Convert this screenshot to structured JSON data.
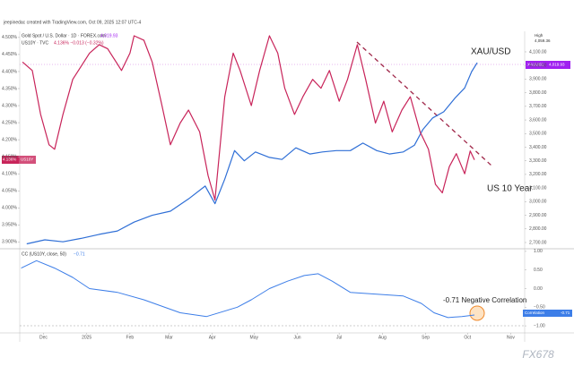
{
  "header": "jeepinedac created with TradingView.com, Oct 09, 2025 12:07 UTC-4",
  "chart_data": [
    {
      "type": "line",
      "legend_values": [
        "4,019.93",
        "4.136% −0.013 (−0.32%)"
      ],
      "annotations": {
        "gold": "XAU/USD",
        "yield": "US 10 Year"
      },
      "last_labels": {
        "yield_name": "US10Y",
        "yield_value": "4.136%",
        "gold_name": "XAUUSD",
        "gold_value": "4,019.93",
        "high_name": "High",
        "high_value": "4,059.36"
      },
      "xlim": [
        13,
        375
      ],
      "xticks": [
        {
          "value": 30,
          "label": "Dec"
        },
        {
          "value": 61,
          "label": "2025"
        },
        {
          "value": 92,
          "label": "Feb"
        },
        {
          "value": 120,
          "label": "Mar"
        },
        {
          "value": 151,
          "label": "Apr"
        },
        {
          "value": 181,
          "label": "May"
        },
        {
          "value": 212,
          "label": "Jun"
        },
        {
          "value": 242,
          "label": "Jul"
        },
        {
          "value": 273,
          "label": "Aug"
        },
        {
          "value": 304,
          "label": "Sep"
        },
        {
          "value": 334,
          "label": "Oct"
        },
        {
          "value": 365,
          "label": "Nov"
        }
      ],
      "ylim": [
        3.88,
        4.518
      ],
      "yticks": [
        {
          "value": 3.9,
          "label": "3.900%"
        },
        {
          "value": 3.95,
          "label": "3.950%"
        },
        {
          "value": 4.0,
          "label": "4.000%"
        },
        {
          "value": 4.05,
          "label": "4.050%"
        },
        {
          "value": 4.1,
          "label": "4.100%"
        },
        {
          "value": 4.15,
          "label": "4.150%"
        },
        {
          "value": 4.2,
          "label": "4.200%"
        },
        {
          "value": 4.25,
          "label": "4.250%"
        },
        {
          "value": 4.3,
          "label": "4.300%"
        },
        {
          "value": 4.35,
          "label": "4.350%"
        },
        {
          "value": 4.4,
          "label": "4.400%"
        },
        {
          "value": 4.45,
          "label": "4.450%"
        },
        {
          "value": 4.5,
          "label": "4.500%"
        }
      ],
      "y2lim": [
        2654,
        4251
      ],
      "y2ticks": [
        {
          "value": 2700,
          "label": "2,700.00"
        },
        {
          "value": 2800,
          "label": "2,800.00"
        },
        {
          "value": 2900,
          "label": "2,900.00"
        },
        {
          "value": 3000,
          "label": "3,000.00"
        },
        {
          "value": 3100,
          "label": "3,100.00"
        },
        {
          "value": 3200,
          "label": "3,200.00"
        },
        {
          "value": 3300,
          "label": "3,300.00"
        },
        {
          "value": 3400,
          "label": "3,400.00"
        },
        {
          "value": 3500,
          "label": "3,500.00"
        },
        {
          "value": 3600,
          "label": "3,600.00"
        },
        {
          "value": 3700,
          "label": "3,700.00"
        },
        {
          "value": 3800,
          "label": "3,800.00"
        },
        {
          "value": 3900,
          "label": "3,900.00"
        },
        {
          "value": 4000,
          "label": "4,000.00"
        },
        {
          "value": 4100,
          "label": "4,100.00"
        }
      ],
      "grid": false,
      "series": [
        {
          "name": "Gold Spot / U.S. Dollar · 1D · FOREX.com",
          "color": "#2f6fd6",
          "axis": "y2",
          "x": [
            18,
            31,
            44,
            57,
            70,
            83,
            95,
            108,
            121,
            134,
            146,
            153,
            160,
            167,
            174,
            182,
            192,
            201,
            211,
            221,
            230,
            240,
            250,
            259,
            269,
            278,
            288,
            296,
            302,
            309,
            317,
            325,
            332,
            337,
            341
          ],
          "values": [
            2690,
            2720,
            2705,
            2730,
            2760,
            2785,
            2850,
            2900,
            2930,
            3020,
            3115,
            2985,
            3165,
            3375,
            3300,
            3365,
            3325,
            3310,
            3395,
            3350,
            3365,
            3375,
            3375,
            3430,
            3375,
            3350,
            3365,
            3415,
            3530,
            3615,
            3660,
            3760,
            3835,
            3955,
            4020
          ]
        },
        {
          "name": "US10Y · TVC",
          "color": "#c8245a",
          "x": [
            15,
            22,
            28,
            34,
            38,
            44,
            51,
            57,
            63,
            70,
            76,
            86,
            92,
            95,
            102,
            108,
            115,
            121,
            128,
            134,
            142,
            148,
            153,
            160,
            166,
            171,
            179,
            185,
            192,
            198,
            203,
            210,
            216,
            223,
            229,
            235,
            242,
            248,
            255,
            261,
            268,
            274,
            280,
            287,
            293,
            300,
            306,
            311,
            316,
            321,
            326,
            332,
            336,
            339
          ],
          "values": [
            4.428,
            4.403,
            4.274,
            4.185,
            4.172,
            4.274,
            4.377,
            4.415,
            4.454,
            4.479,
            4.467,
            4.403,
            4.454,
            4.505,
            4.492,
            4.428,
            4.3,
            4.185,
            4.249,
            4.287,
            4.223,
            4.095,
            4.023,
            4.326,
            4.454,
            4.403,
            4.3,
            4.403,
            4.505,
            4.454,
            4.351,
            4.274,
            4.326,
            4.377,
            4.351,
            4.403,
            4.313,
            4.377,
            4.479,
            4.377,
            4.249,
            4.313,
            4.223,
            4.287,
            4.326,
            4.223,
            4.172,
            4.069,
            4.044,
            4.121,
            4.159,
            4.1,
            4.167,
            4.141
          ]
        }
      ]
    },
    {
      "type": "line",
      "title": "CC (US10Y, close, 50)",
      "legend_value": "−0.71",
      "annotation": "-0.71 Negative Correlation",
      "last_label": "-0.71",
      "xlim": [
        13,
        375
      ],
      "ylim": [
        -1.19,
        1.07
      ],
      "yticks": [
        {
          "value": -1,
          "label": "−1.00"
        },
        {
          "value": -0.5,
          "label": "−0.50"
        },
        {
          "value": 0,
          "label": "0.00"
        },
        {
          "value": 0.5,
          "label": "0.50"
        },
        {
          "value": 1,
          "label": "1.00"
        }
      ],
      "series": [
        {
          "name": "Correlation",
          "color": "#3d7ee8",
          "x": [
            14,
            25,
            38,
            51,
            63,
            83,
            102,
            128,
            147,
            169,
            179,
            192,
            205,
            217,
            227,
            237,
            250,
            269,
            288,
            301,
            310,
            320,
            330,
            339
          ],
          "values": [
            0.55,
            0.75,
            0.55,
            0.3,
            0.0,
            -0.1,
            -0.3,
            -0.65,
            -0.75,
            -0.5,
            -0.3,
            0.0,
            0.2,
            0.35,
            0.4,
            0.2,
            -0.1,
            -0.15,
            -0.2,
            -0.4,
            -0.65,
            -0.78,
            -0.75,
            -0.71
          ]
        }
      ]
    }
  ],
  "watermark": "FX678"
}
